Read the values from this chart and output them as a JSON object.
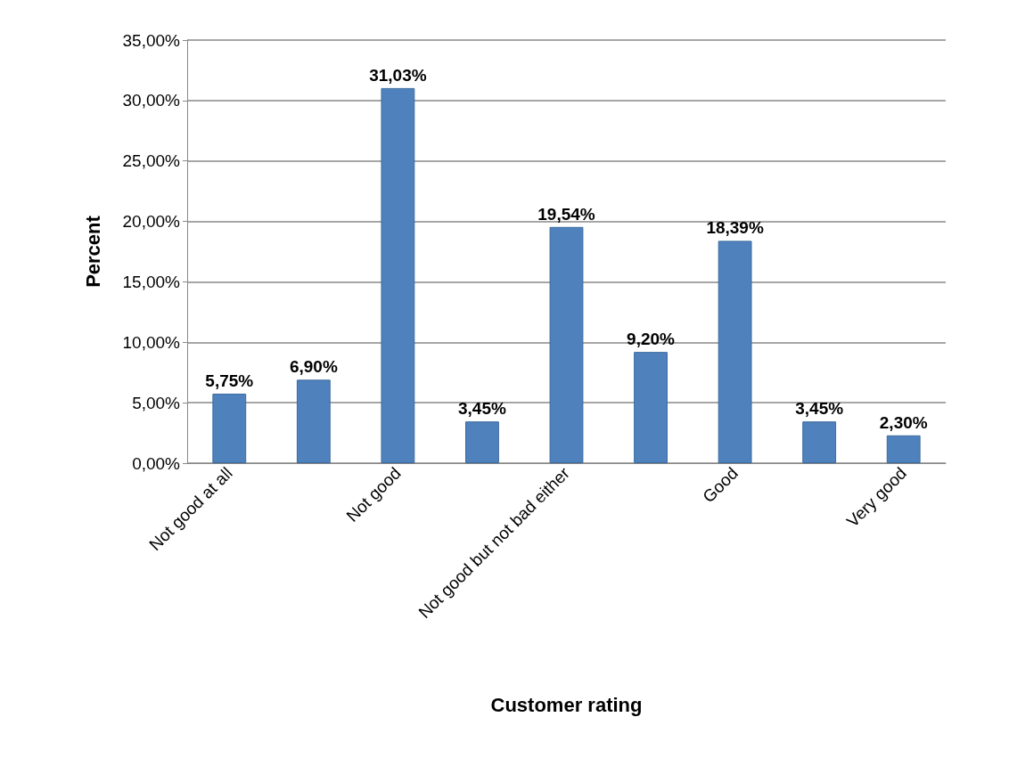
{
  "chart_data": {
    "type": "bar",
    "xlabel": "Customer rating",
    "ylabel": "Percent",
    "categories": [
      "Not good at all",
      null,
      "Not good",
      null,
      "Not good but not bad either",
      null,
      "Good",
      null,
      "Very good"
    ],
    "values": [
      5.75,
      6.9,
      31.03,
      3.45,
      19.54,
      9.2,
      18.39,
      3.45,
      2.3
    ],
    "value_labels": [
      "5,75%",
      "6,90%",
      "31,03%",
      "3,45%",
      "19,54%",
      "9,20%",
      "18,39%",
      "3,45%",
      "2,30%"
    ],
    "color": "#4f81bd",
    "ylim": [
      0,
      35
    ],
    "yticks": [
      {
        "value": 0,
        "label": "0,00%"
      },
      {
        "value": 5,
        "label": "5,00%"
      },
      {
        "value": 10,
        "label": "10,00%"
      },
      {
        "value": 15,
        "label": "15,00%"
      },
      {
        "value": 20,
        "label": "20,00%"
      },
      {
        "value": 25,
        "label": "25,00%"
      },
      {
        "value": 30,
        "label": "30,00%"
      },
      {
        "value": 35,
        "label": "35,00%"
      }
    ],
    "grid": "y"
  }
}
